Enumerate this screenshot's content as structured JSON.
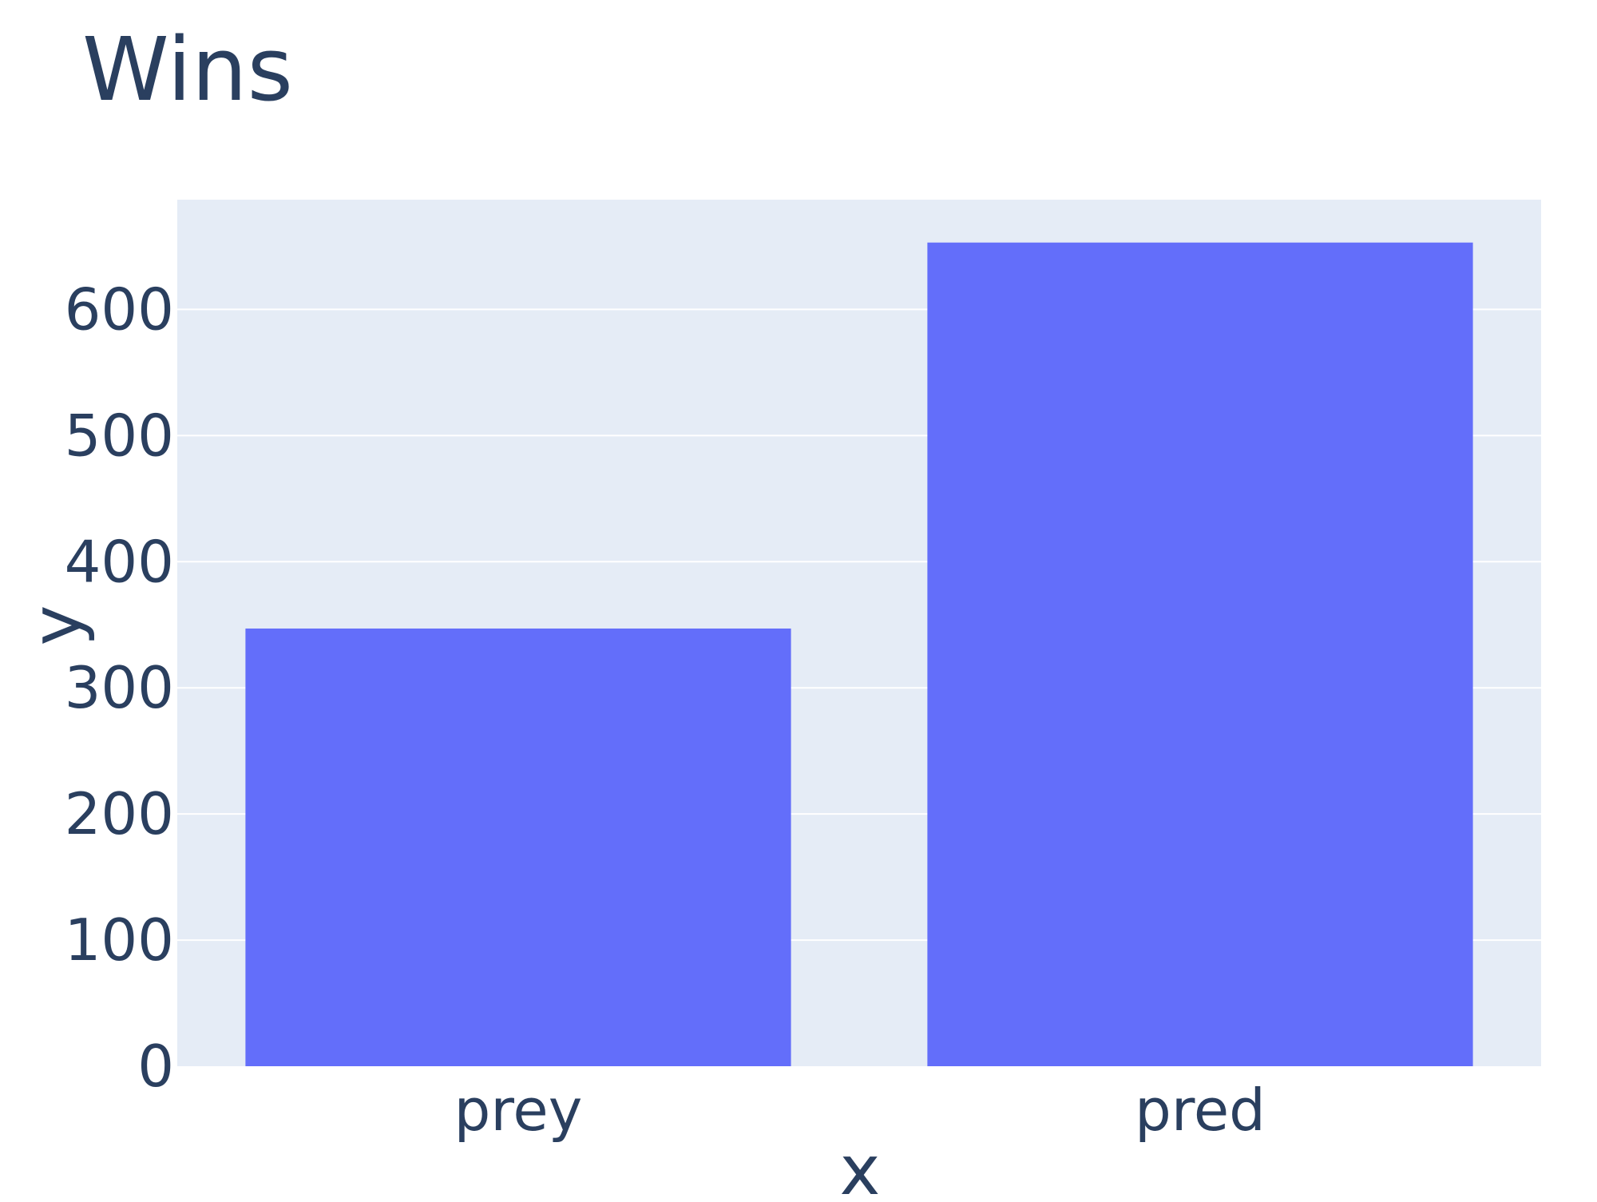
{
  "colors": {
    "plot_background": "#e5ecf6",
    "paper_background": "#ffffff",
    "gridline": "#ffffff",
    "bar": "#636efa",
    "text": "#2a3f5f"
  },
  "chart_data": {
    "type": "bar",
    "title": "Wins",
    "xlabel": "x",
    "ylabel": "y",
    "categories": [
      "prey",
      "pred"
    ],
    "values": [
      347,
      653
    ],
    "ylim": [
      0,
      687
    ],
    "yticks": [
      0,
      100,
      200,
      300,
      400,
      500,
      600
    ],
    "grid": true,
    "legend": "none"
  }
}
